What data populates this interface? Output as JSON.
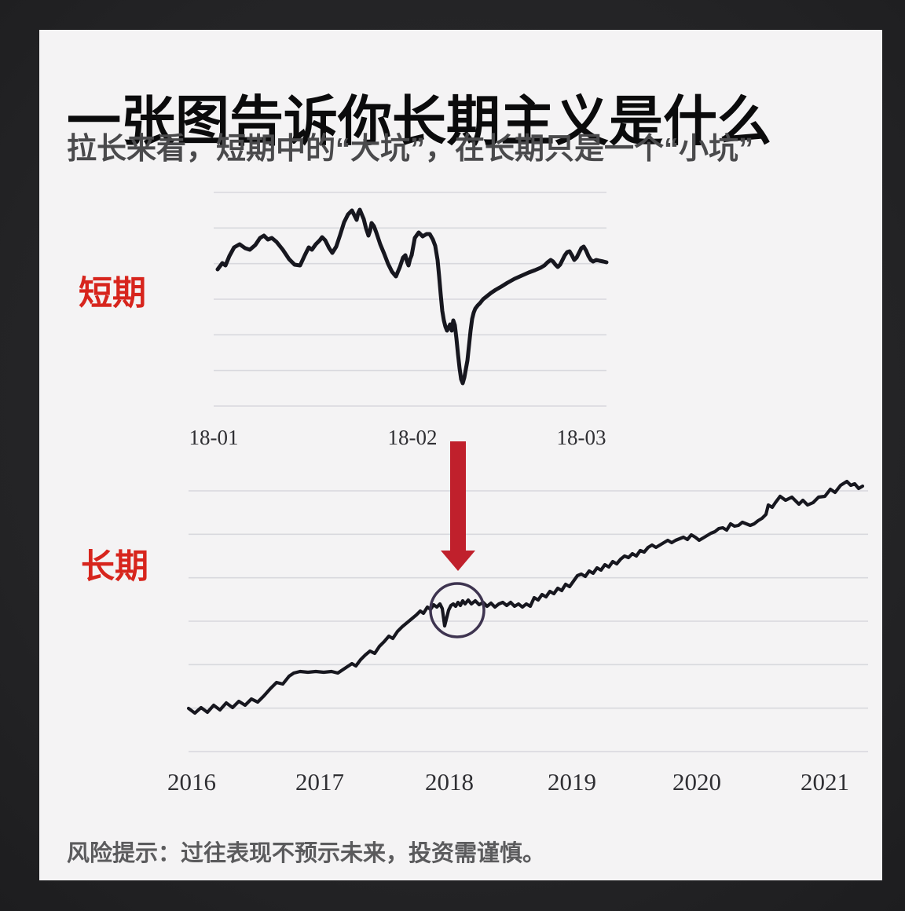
{
  "page": {
    "title": "一张图告诉你长期主义是什么",
    "subtitle": "拉长来看，短期中的“大坑”，在长期只是一个“小坑”",
    "risk_note": "风险提示：过往表现不预示未来，投资需谨慎。"
  },
  "colors": {
    "frame_bg": "#28282a",
    "panel_bg": "#f4f3f4",
    "title_text": "#0b0b0c",
    "subtitle_text": "#4a4a4c",
    "accent_red": "#d7251d",
    "arrow_red": "#c0202c",
    "annotation_circle": "#3e3450",
    "series_line": "#17171f",
    "grid_line": "#d8d8dd",
    "tick_text": "#2f2f33",
    "risk_text": "#5b5b5d"
  },
  "chart_data": [
    {
      "type": "line",
      "name": "short-term",
      "label": "短期",
      "x_tick_labels": [
        "18-01",
        "18-02",
        "18-03"
      ],
      "x_tick_positions": [
        272,
        525,
        740
      ],
      "x_range": [
        272,
        772
      ],
      "y_range": [
        0,
        272
      ],
      "grid": true,
      "legend": "none",
      "points": [
        [
          277,
          174
        ],
        [
          283,
          182
        ],
        [
          287,
          179
        ],
        [
          292,
          191
        ],
        [
          298,
          202
        ],
        [
          305,
          206
        ],
        [
          312,
          201
        ],
        [
          318,
          199
        ],
        [
          325,
          205
        ],
        [
          331,
          214
        ],
        [
          336,
          217
        ],
        [
          341,
          212
        ],
        [
          346,
          214
        ],
        [
          352,
          209
        ],
        [
          360,
          199
        ],
        [
          368,
          187
        ],
        [
          375,
          180
        ],
        [
          382,
          179
        ],
        [
          388,
          192
        ],
        [
          393,
          202
        ],
        [
          397,
          199
        ],
        [
          402,
          206
        ],
        [
          407,
          211
        ],
        [
          410,
          215
        ],
        [
          414,
          211
        ],
        [
          419,
          201
        ],
        [
          423,
          195
        ],
        [
          428,
          203
        ],
        [
          433,
          218
        ],
        [
          438,
          234
        ],
        [
          443,
          244
        ],
        [
          448,
          249
        ],
        [
          451,
          243
        ],
        [
          454,
          237
        ],
        [
          456,
          246
        ],
        [
          458,
          250
        ],
        [
          463,
          238
        ],
        [
          466,
          226
        ],
        [
          469,
          217
        ],
        [
          471,
          223
        ],
        [
          473,
          233
        ],
        [
          476,
          229
        ],
        [
          479,
          221
        ],
        [
          484,
          206
        ],
        [
          489,
          194
        ],
        [
          494,
          181
        ],
        [
          499,
          171
        ],
        [
          504,
          165
        ],
        [
          509,
          177
        ],
        [
          513,
          189
        ],
        [
          516,
          192
        ],
        [
          518,
          184
        ],
        [
          520,
          179
        ],
        [
          522,
          187
        ],
        [
          524,
          192
        ],
        [
          528,
          214
        ],
        [
          533,
          221
        ],
        [
          538,
          216
        ],
        [
          543,
          219
        ],
        [
          547,
          219
        ],
        [
          551,
          212
        ],
        [
          554,
          204
        ],
        [
          557,
          186
        ],
        [
          559,
          165
        ],
        [
          561,
          142
        ],
        [
          563,
          121
        ],
        [
          565,
          109
        ],
        [
          567,
          101
        ],
        [
          569,
          96
        ],
        [
          571,
          100
        ],
        [
          573,
          104
        ],
        [
          575,
          96
        ],
        [
          577,
          109
        ],
        [
          579,
          103
        ],
        [
          581,
          86
        ],
        [
          583,
          66
        ],
        [
          585,
          48
        ],
        [
          587,
          34
        ],
        [
          589,
          29
        ],
        [
          591,
          36
        ],
        [
          593,
          47
        ],
        [
          595,
          58
        ],
        [
          597,
          77
        ],
        [
          599,
          96
        ],
        [
          601,
          111
        ],
        [
          603,
          119
        ],
        [
          605,
          124
        ],
        [
          608,
          128
        ],
        [
          611,
          131
        ],
        [
          615,
          136
        ],
        [
          620,
          140
        ],
        [
          625,
          144
        ],
        [
          631,
          148
        ],
        [
          638,
          152
        ],
        [
          646,
          157
        ],
        [
          655,
          162
        ],
        [
          664,
          166
        ],
        [
          673,
          170
        ],
        [
          681,
          173
        ],
        [
          688,
          176
        ],
        [
          693,
          179
        ],
        [
          697,
          183
        ],
        [
          701,
          186
        ],
        [
          704,
          184
        ],
        [
          707,
          180
        ],
        [
          710,
          177
        ],
        [
          713,
          180
        ],
        [
          716,
          186
        ],
        [
          719,
          192
        ],
        [
          722,
          196
        ],
        [
          725,
          197
        ],
        [
          728,
          192
        ],
        [
          731,
          186
        ],
        [
          734,
          189
        ],
        [
          737,
          195
        ],
        [
          740,
          201
        ],
        [
          743,
          203
        ],
        [
          746,
          198
        ],
        [
          749,
          191
        ],
        [
          752,
          186
        ],
        [
          755,
          184
        ],
        [
          759,
          186
        ],
        [
          763,
          185
        ],
        [
          768,
          184
        ],
        [
          772,
          183
        ]
      ],
      "annotations": []
    },
    {
      "type": "line",
      "name": "long-term",
      "label": "长期",
      "x_tick_labels": [
        "2016",
        "2017",
        "2018",
        "2019",
        "2020",
        "2021"
      ],
      "x_tick_positions": [
        244,
        407,
        572,
        728,
        887,
        1050
      ],
      "x_range": [
        240,
        1105
      ],
      "y_range": [
        0,
        360
      ],
      "grid": true,
      "legend": "none",
      "points": [
        [
          240,
          55
        ],
        [
          248,
          49
        ],
        [
          256,
          56
        ],
        [
          264,
          50
        ],
        [
          272,
          59
        ],
        [
          280,
          53
        ],
        [
          288,
          62
        ],
        [
          296,
          56
        ],
        [
          304,
          64
        ],
        [
          312,
          59
        ],
        [
          320,
          67
        ],
        [
          328,
          63
        ],
        [
          336,
          71
        ],
        [
          344,
          80
        ],
        [
          352,
          88
        ],
        [
          360,
          86
        ],
        [
          368,
          96
        ],
        [
          374,
          100
        ],
        [
          382,
          102
        ],
        [
          392,
          101
        ],
        [
          402,
          102
        ],
        [
          412,
          101
        ],
        [
          422,
          102
        ],
        [
          430,
          100
        ],
        [
          436,
          104
        ],
        [
          442,
          108
        ],
        [
          448,
          112
        ],
        [
          453,
          109
        ],
        [
          459,
          117
        ],
        [
          465,
          123
        ],
        [
          471,
          128
        ],
        [
          477,
          125
        ],
        [
          483,
          134
        ],
        [
          489,
          140
        ],
        [
          495,
          147
        ],
        [
          500,
          144
        ],
        [
          506,
          153
        ],
        [
          512,
          159
        ],
        [
          518,
          164
        ],
        [
          524,
          169
        ],
        [
          530,
          174
        ],
        [
          535,
          179
        ],
        [
          539,
          176
        ],
        [
          544,
          184
        ],
        [
          548,
          181
        ],
        [
          552,
          187
        ],
        [
          556,
          184
        ],
        [
          560,
          188
        ],
        [
          563,
          182
        ],
        [
          566,
          160
        ],
        [
          568,
          168
        ],
        [
          571,
          180
        ],
        [
          574,
          186
        ],
        [
          577,
          188
        ],
        [
          580,
          185
        ],
        [
          583,
          190
        ],
        [
          586,
          186
        ],
        [
          589,
          192
        ],
        [
          592,
          188
        ],
        [
          596,
          193
        ],
        [
          600,
          188
        ],
        [
          605,
          192
        ],
        [
          610,
          187
        ],
        [
          615,
          190
        ],
        [
          620,
          185
        ],
        [
          625,
          189
        ],
        [
          630,
          184
        ],
        [
          635,
          188
        ],
        [
          640,
          190
        ],
        [
          645,
          186
        ],
        [
          650,
          190
        ],
        [
          655,
          185
        ],
        [
          660,
          188
        ],
        [
          665,
          184
        ],
        [
          670,
          188
        ],
        [
          675,
          185
        ],
        [
          680,
          196
        ],
        [
          685,
          193
        ],
        [
          690,
          200
        ],
        [
          695,
          197
        ],
        [
          700,
          204
        ],
        [
          705,
          201
        ],
        [
          710,
          208
        ],
        [
          715,
          205
        ],
        [
          720,
          213
        ],
        [
          725,
          210
        ],
        [
          730,
          217
        ],
        [
          735,
          224
        ],
        [
          740,
          226
        ],
        [
          745,
          223
        ],
        [
          750,
          230
        ],
        [
          755,
          227
        ],
        [
          760,
          234
        ],
        [
          765,
          231
        ],
        [
          770,
          238
        ],
        [
          775,
          235
        ],
        [
          780,
          242
        ],
        [
          785,
          239
        ],
        [
          790,
          245
        ],
        [
          795,
          249
        ],
        [
          800,
          247
        ],
        [
          805,
          252
        ],
        [
          810,
          249
        ],
        [
          815,
          256
        ],
        [
          820,
          254
        ],
        [
          825,
          260
        ],
        [
          830,
          263
        ],
        [
          835,
          260
        ],
        [
          840,
          263
        ],
        [
          845,
          266
        ],
        [
          850,
          269
        ],
        [
          855,
          266
        ],
        [
          860,
          269
        ],
        [
          865,
          271
        ],
        [
          870,
          273
        ],
        [
          875,
          270
        ],
        [
          880,
          276
        ],
        [
          885,
          273
        ],
        [
          890,
          269
        ],
        [
          895,
          272
        ],
        [
          900,
          275
        ],
        [
          905,
          278
        ],
        [
          910,
          280
        ],
        [
          915,
          284
        ],
        [
          920,
          285
        ],
        [
          925,
          282
        ],
        [
          930,
          290
        ],
        [
          935,
          287
        ],
        [
          940,
          288
        ],
        [
          945,
          292
        ],
        [
          950,
          290
        ],
        [
          955,
          288
        ],
        [
          960,
          290
        ],
        [
          965,
          294
        ],
        [
          970,
          297
        ],
        [
          975,
          302
        ],
        [
          978,
          314
        ],
        [
          983,
          311
        ],
        [
          987,
          317
        ],
        [
          993,
          325
        ],
        [
          1000,
          320
        ],
        [
          1008,
          324
        ],
        [
          1013,
          319
        ],
        [
          1017,
          315
        ],
        [
          1022,
          320
        ],
        [
          1028,
          314
        ],
        [
          1035,
          317
        ],
        [
          1042,
          324
        ],
        [
          1050,
          325
        ],
        [
          1057,
          334
        ],
        [
          1063,
          330
        ],
        [
          1070,
          339
        ],
        [
          1078,
          344
        ],
        [
          1083,
          339
        ],
        [
          1088,
          341
        ],
        [
          1093,
          335
        ],
        [
          1098,
          338
        ]
      ],
      "annotations": [
        {
          "type": "down-arrow",
          "x": 583,
          "v_top": 395,
          "v_tip": 230
        },
        {
          "type": "circle",
          "x": 582,
          "v": 180,
          "r": 34
        }
      ]
    }
  ]
}
